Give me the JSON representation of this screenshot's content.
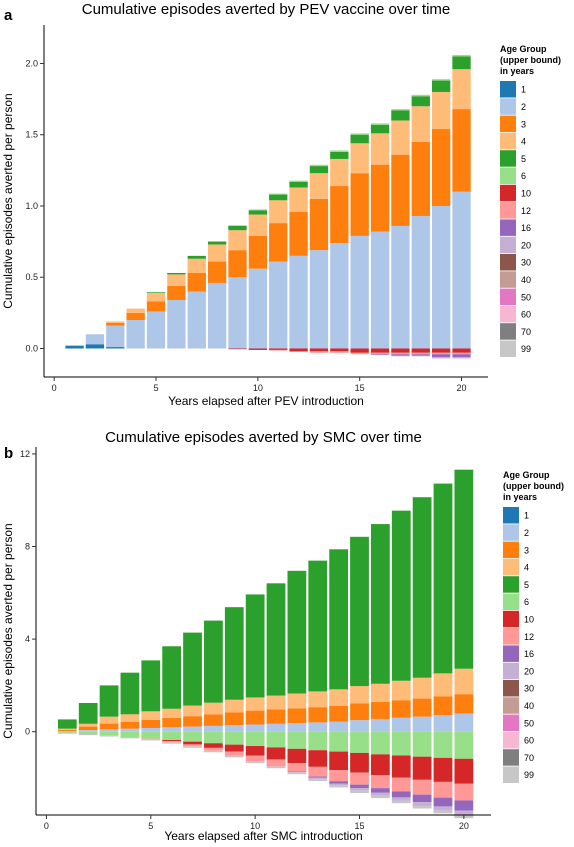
{
  "chart_data": [
    {
      "type": "bar",
      "panel_label": "a",
      "title": "Cumulative episodes averted by PEV vaccine over time",
      "xlabel": "Years elapsed after PEV introduction",
      "ylabel": "Cumulative episodes averted per person",
      "xlim": [
        -0.5,
        21.3
      ],
      "ylim": [
        -0.2,
        2.27
      ],
      "xticks": [
        0,
        5,
        10,
        15,
        20
      ],
      "yticks": [
        0.0,
        0.5,
        1.0,
        1.5,
        2.0
      ],
      "ytick_labels": [
        "0.0",
        "0.5",
        "1.0",
        "1.5",
        "2.0"
      ],
      "stacked": true,
      "legend_title": [
        "Age Group",
        "(upper bound)",
        "in years"
      ],
      "legend_position": "right",
      "grid": false,
      "x": [
        1,
        2,
        3,
        4,
        5,
        6,
        7,
        8,
        9,
        10,
        11,
        12,
        13,
        14,
        15,
        16,
        17,
        18,
        19,
        20
      ],
      "series": [
        {
          "name": "1",
          "color": "#1f77b4",
          "values": [
            0.02,
            0.03,
            0.01,
            0,
            0,
            0,
            0,
            0,
            0,
            0,
            0,
            0,
            0,
            0,
            0,
            0,
            0,
            0,
            0,
            0
          ]
        },
        {
          "name": "2",
          "color": "#aec7e8",
          "values": [
            0,
            0.07,
            0.15,
            0.2,
            0.26,
            0.34,
            0.4,
            0.46,
            0.5,
            0.56,
            0.61,
            0.65,
            0.69,
            0.74,
            0.79,
            0.82,
            0.86,
            0.93,
            1.0,
            1.1
          ]
        },
        {
          "name": "3",
          "color": "#ff7f0e",
          "values": [
            0,
            0,
            0.02,
            0.05,
            0.07,
            0.1,
            0.13,
            0.15,
            0.19,
            0.23,
            0.27,
            0.31,
            0.36,
            0.4,
            0.44,
            0.47,
            0.5,
            0.52,
            0.54,
            0.58
          ]
        },
        {
          "name": "4",
          "color": "#ffbb78",
          "values": [
            0,
            0,
            0.01,
            0.03,
            0.06,
            0.08,
            0.1,
            0.12,
            0.14,
            0.15,
            0.16,
            0.17,
            0.18,
            0.19,
            0.21,
            0.22,
            0.24,
            0.25,
            0.26,
            0.28
          ]
        },
        {
          "name": "5",
          "color": "#2ca02c",
          "values": [
            0,
            0,
            0,
            0,
            0.005,
            0.01,
            0.02,
            0.02,
            0.03,
            0.03,
            0.04,
            0.04,
            0.05,
            0.05,
            0.06,
            0.06,
            0.07,
            0.07,
            0.08,
            0.09
          ]
        },
        {
          "name": "6",
          "color": "#98df8a",
          "values": [
            0,
            0,
            0,
            0,
            0,
            0,
            0,
            0.003,
            0.005,
            0.006,
            0.007,
            0.008,
            0.009,
            0.01,
            0.01,
            0.01,
            0.01,
            0.01,
            0.01,
            0.01
          ]
        },
        {
          "name": "10",
          "color": "#d62728",
          "values": [
            0,
            0,
            0,
            0,
            0,
            0,
            0,
            0,
            -0.005,
            -0.01,
            -0.01,
            -0.02,
            -0.02,
            -0.02,
            -0.03,
            -0.03,
            -0.03,
            -0.03,
            -0.03,
            -0.03
          ]
        },
        {
          "name": "12",
          "color": "#ff9896",
          "values": [
            0,
            0,
            0,
            0,
            0,
            0,
            0,
            0,
            0,
            0,
            -0.005,
            -0.005,
            -0.01,
            -0.01,
            -0.01,
            -0.01,
            -0.01,
            -0.01,
            -0.01,
            -0.01
          ]
        },
        {
          "name": "16",
          "color": "#9467bd",
          "values": [
            0,
            0,
            0,
            0,
            0,
            0,
            0,
            0,
            0,
            0,
            0,
            0,
            0,
            0,
            0,
            -0.005,
            -0.01,
            -0.01,
            -0.02,
            -0.02
          ]
        },
        {
          "name": "20",
          "color": "#c5b0d5",
          "values": [
            0,
            0,
            0,
            0,
            0,
            0,
            0,
            0,
            0,
            0,
            0,
            0,
            0,
            0,
            0,
            0,
            -0.005,
            -0.005,
            -0.01,
            -0.01
          ]
        },
        {
          "name": "30",
          "color": "#8c564b",
          "values": [
            0,
            0,
            0,
            0,
            0,
            0,
            0,
            0,
            0,
            0,
            0,
            0,
            0,
            0,
            0,
            0,
            0,
            0,
            0,
            0
          ]
        },
        {
          "name": "40",
          "color": "#c49c94",
          "values": [
            0,
            0,
            0,
            0,
            0,
            0,
            0,
            0,
            0,
            0,
            0,
            0,
            0,
            0,
            0,
            0,
            0,
            0,
            0,
            0
          ]
        },
        {
          "name": "50",
          "color": "#e377c2",
          "values": [
            0,
            0,
            0,
            0,
            0,
            0,
            0,
            0,
            0,
            0,
            0,
            0,
            0,
            0,
            0,
            0,
            0,
            0,
            0,
            0
          ]
        },
        {
          "name": "60",
          "color": "#f7b6d2",
          "values": [
            0,
            0,
            0,
            0,
            0,
            0,
            0,
            0,
            0,
            0,
            0,
            0,
            0,
            0,
            0,
            0,
            0,
            0,
            0,
            0
          ]
        },
        {
          "name": "70",
          "color": "#7f7f7f",
          "values": [
            0,
            0,
            0,
            0,
            0,
            0,
            0,
            0,
            0,
            0,
            0,
            0,
            0,
            0,
            0,
            0,
            0,
            0,
            0,
            0
          ]
        },
        {
          "name": "99",
          "color": "#c7c7c7",
          "values": [
            0,
            0,
            0,
            0,
            0,
            0,
            0,
            0,
            0,
            0,
            0,
            0,
            0,
            0,
            0,
            0,
            0,
            0,
            0,
            0
          ]
        }
      ]
    },
    {
      "type": "bar",
      "panel_label": "b",
      "title": "Cumulative episodes averted by SMC over time",
      "xlabel": "Years elapsed after SMC introduction",
      "ylabel": "Cumulative episodes averted per person",
      "xlim": [
        -0.5,
        21.3
      ],
      "ylim": [
        -3.6,
        12.3
      ],
      "xticks": [
        0,
        5,
        10,
        15,
        20
      ],
      "yticks": [
        0,
        4,
        8,
        12
      ],
      "ytick_labels": [
        "0",
        "4",
        "8",
        "12"
      ],
      "stacked": true,
      "legend_title": [
        "Age Group",
        "(upper bound)",
        "in years"
      ],
      "legend_position": "right",
      "grid": false,
      "x": [
        1,
        2,
        3,
        4,
        5,
        6,
        7,
        8,
        9,
        10,
        11,
        12,
        13,
        14,
        15,
        16,
        17,
        18,
        19,
        20
      ],
      "series": [
        {
          "name": "1",
          "color": "#1f77b4",
          "values": [
            0,
            0,
            0,
            0,
            0,
            0,
            0,
            0,
            0,
            0,
            0,
            0,
            0,
            0,
            0,
            0,
            0,
            0,
            0,
            0
          ]
        },
        {
          "name": "2",
          "color": "#aec7e8",
          "values": [
            0.03,
            0.07,
            0.1,
            0.13,
            0.16,
            0.19,
            0.22,
            0.25,
            0.28,
            0.31,
            0.34,
            0.37,
            0.4,
            0.43,
            0.5,
            0.55,
            0.6,
            0.65,
            0.72,
            0.78
          ]
        },
        {
          "name": "3",
          "color": "#ff7f0e",
          "values": [
            0.05,
            0.15,
            0.25,
            0.3,
            0.35,
            0.4,
            0.45,
            0.5,
            0.55,
            0.6,
            0.62,
            0.64,
            0.66,
            0.68,
            0.72,
            0.74,
            0.76,
            0.78,
            0.8,
            0.84
          ]
        },
        {
          "name": "4",
          "color": "#ffbb78",
          "values": [
            0.05,
            0.12,
            0.3,
            0.32,
            0.37,
            0.4,
            0.46,
            0.5,
            0.55,
            0.57,
            0.6,
            0.64,
            0.68,
            0.72,
            0.75,
            0.78,
            0.84,
            0.9,
            1.0,
            1.1
          ]
        },
        {
          "name": "5",
          "color": "#2ca02c",
          "values": [
            0.4,
            0.9,
            1.35,
            1.8,
            2.2,
            2.7,
            3.15,
            3.55,
            4.0,
            4.45,
            4.85,
            5.3,
            5.65,
            6.05,
            6.45,
            6.9,
            7.35,
            7.8,
            8.2,
            8.6
          ]
        },
        {
          "name": "6",
          "color": "#98df8a",
          "values": [
            -0.04,
            -0.1,
            -0.16,
            -0.23,
            -0.3,
            -0.36,
            -0.43,
            -0.5,
            -0.56,
            -0.62,
            -0.68,
            -0.74,
            -0.8,
            -0.86,
            -0.92,
            -0.98,
            -1.03,
            -1.08,
            -1.13,
            -1.17
          ]
        },
        {
          "name": "10",
          "color": "#d62728",
          "values": [
            0,
            0,
            0,
            0,
            0,
            -0.05,
            -0.12,
            -0.2,
            -0.3,
            -0.42,
            -0.52,
            -0.62,
            -0.72,
            -0.8,
            -0.85,
            -0.9,
            -0.95,
            -1.0,
            -1.04,
            -1.08
          ]
        },
        {
          "name": "12",
          "color": "#ff9896",
          "values": [
            0,
            0,
            0,
            0,
            -0.02,
            -0.05,
            -0.08,
            -0.12,
            -0.18,
            -0.24,
            -0.3,
            -0.36,
            -0.42,
            -0.48,
            -0.52,
            -0.56,
            -0.6,
            -0.64,
            -0.68,
            -0.72
          ]
        },
        {
          "name": "16",
          "color": "#9467bd",
          "values": [
            0,
            0,
            0,
            0,
            0,
            0,
            0,
            0,
            0,
            0,
            0,
            -0.02,
            -0.05,
            -0.1,
            -0.15,
            -0.2,
            -0.26,
            -0.32,
            -0.38,
            -0.44
          ]
        },
        {
          "name": "20",
          "color": "#c5b0d5",
          "values": [
            0,
            0,
            0,
            0,
            0,
            0,
            0,
            0,
            0,
            0,
            0,
            -0.02,
            -0.05,
            -0.08,
            -0.11,
            -0.13,
            -0.15,
            -0.17,
            -0.19,
            -0.21
          ]
        },
        {
          "name": "30",
          "color": "#8c564b",
          "values": [
            0,
            0,
            0,
            0,
            0,
            0,
            0,
            0,
            0,
            0,
            0,
            0,
            0,
            0,
            0,
            0,
            0,
            0,
            0,
            0
          ]
        },
        {
          "name": "40",
          "color": "#c49c94",
          "values": [
            0,
            0,
            0,
            0,
            0,
            0,
            0,
            0,
            0,
            0,
            0,
            0,
            0,
            0,
            0,
            0,
            0,
            0,
            0,
            0
          ]
        },
        {
          "name": "50",
          "color": "#e377c2",
          "values": [
            0,
            0,
            0,
            0,
            0,
            0,
            0,
            0,
            0,
            0,
            0,
            0,
            0,
            0,
            0,
            0,
            0,
            0,
            0,
            0
          ]
        },
        {
          "name": "60",
          "color": "#f7b6d2",
          "values": [
            0,
            0,
            0,
            0,
            0,
            0,
            0,
            0,
            0,
            0,
            0,
            0,
            0,
            0,
            0,
            0,
            0,
            0,
            0,
            0
          ]
        },
        {
          "name": "70",
          "color": "#7f7f7f",
          "values": [
            0,
            0,
            0,
            0,
            0,
            0,
            0,
            0,
            0,
            0,
            0,
            0,
            0,
            0,
            0,
            0,
            0,
            0,
            0,
            0
          ]
        },
        {
          "name": "99",
          "color": "#c7c7c7",
          "values": [
            -0.05,
            -0.05,
            -0.05,
            -0.06,
            -0.06,
            -0.06,
            -0.07,
            -0.07,
            -0.07,
            -0.08,
            -0.08,
            -0.08,
            -0.09,
            -0.09,
            -0.1,
            -0.1,
            -0.1,
            -0.11,
            -0.11,
            -0.12
          ]
        }
      ]
    }
  ]
}
